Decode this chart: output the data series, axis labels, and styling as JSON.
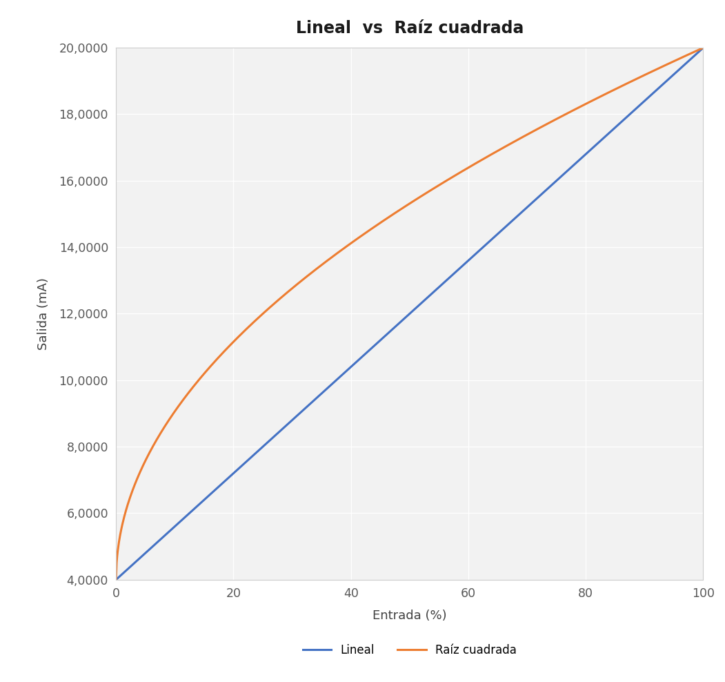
{
  "title": "Lineal  vs  Raíz cuadrada",
  "xlabel": "Entrada (%)",
  "ylabel": "Salida (mA)",
  "x_min": 0,
  "x_max": 100,
  "y_min": 4.0,
  "y_max": 20.0,
  "output_min": 4.0,
  "output_max": 20.0,
  "x_ticks": [
    0,
    20,
    40,
    60,
    80,
    100
  ],
  "y_ticks": [
    4.0,
    6.0,
    8.0,
    10.0,
    12.0,
    14.0,
    16.0,
    18.0,
    20.0
  ],
  "lineal_color": "#4472C4",
  "sqrt_color": "#ED7D31",
  "line_width": 2.2,
  "background_color": "#FFFFFF",
  "plot_bg_color": "#F2F2F2",
  "grid_color": "#FFFFFF",
  "tick_color": "#595959",
  "legend_lineal": "Lineal",
  "legend_sqrt": "Raíz cuadrada",
  "title_fontsize": 17,
  "axis_label_fontsize": 13,
  "tick_fontsize": 12.5,
  "legend_fontsize": 12
}
